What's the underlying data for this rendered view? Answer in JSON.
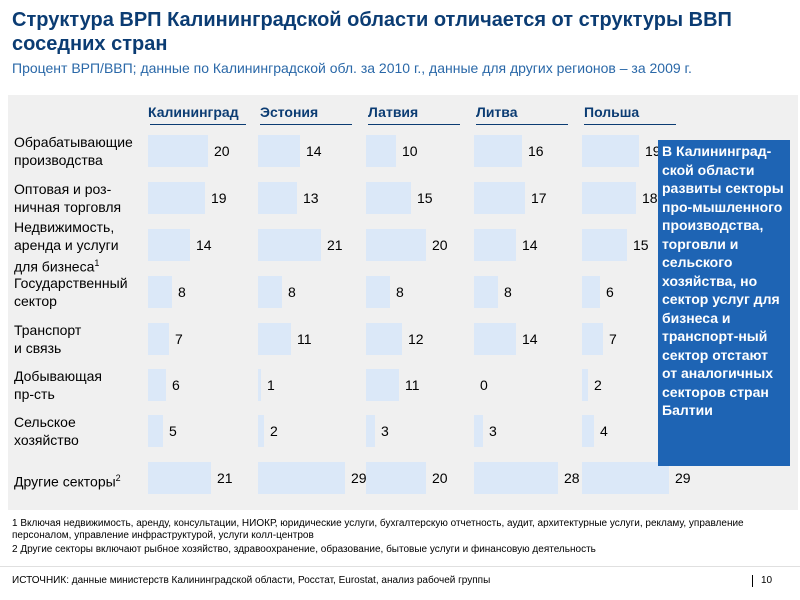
{
  "title": "Структура ВРП Калининградской области отличается от структуры ВВП соседних стран",
  "subtitle": "Процент ВРП/ВВП; данные по Калининградской обл. за 2010 г., данные для других регионов – за 2009 г.",
  "chart_data": {
    "type": "bar",
    "orientation": "horizontal",
    "unit": "%",
    "categories": [
      {
        "text": "Обрабатывающие производства",
        "sup": ""
      },
      {
        "text": "Оптовая и розничная торговля",
        "sup": ""
      },
      {
        "text": "Недвижимость, аренда и услуги для бизнеса",
        "sup": "1"
      },
      {
        "text": "Государственный сектор",
        "sup": ""
      },
      {
        "text": "Транспорт и связь",
        "sup": ""
      },
      {
        "text": "Добывающая пр-сть",
        "sup": ""
      },
      {
        "text": "Сельское хозяйство",
        "sup": ""
      },
      {
        "text": "Другие секторы",
        "sup": "2"
      }
    ],
    "category_lines": [
      [
        "Обрабатывающие",
        "производства"
      ],
      [
        "Оптовая и роз-",
        "ничная торговля"
      ],
      [
        "Недвижимость,",
        "аренда и услуги",
        "для бизнеса"
      ],
      [
        "Государственный",
        "сектор"
      ],
      [
        "Транспорт",
        "и связь"
      ],
      [
        "Добывающая",
        "пр-сть"
      ],
      [
        "Сельское",
        "хозяйство"
      ],
      [
        "Другие секторы"
      ]
    ],
    "series": [
      {
        "name": "Калининград",
        "values": [
          20,
          19,
          14,
          8,
          7,
          6,
          5,
          21
        ]
      },
      {
        "name": "Эстония",
        "values": [
          14,
          13,
          21,
          8,
          11,
          1,
          2,
          29
        ]
      },
      {
        "name": "Латвия",
        "values": [
          10,
          15,
          20,
          8,
          12,
          11,
          3,
          20
        ]
      },
      {
        "name": "Литва",
        "values": [
          16,
          17,
          14,
          8,
          14,
          0,
          3,
          28
        ]
      },
      {
        "name": "Польша",
        "values": [
          19,
          18,
          15,
          6,
          7,
          2,
          4,
          29
        ]
      }
    ]
  },
  "note": "В Калининград-ской области развиты секторы про-мышленного производства, торговли и сельского хозяйства, но сектор услуг для бизнеса и транспорт-ный сектор отстают от аналогичных секторов стран Балтии",
  "footnotes": [
    "1 Включая недвижимость, аренду, консультации, НИОКР, юридические услуги, бухгалтерскую отчетность, аудит, архитектурные услуги, рекламу, управление персоналом, управление инфраструктурой, услуги колл-центров",
    "2 Другие секторы включают рыбное хозяйство, здравоохранение, образование, бытовые услуги и финансовую деятельность"
  ],
  "source": "ИСТОЧНИК: данные министерств Калининградской области, Росстат, Eurostat, анализ рабочей группы",
  "page_number": "10",
  "colors": {
    "bar": "#dbe8f8",
    "accent": "#1e64b4",
    "title": "#0b3c73"
  }
}
